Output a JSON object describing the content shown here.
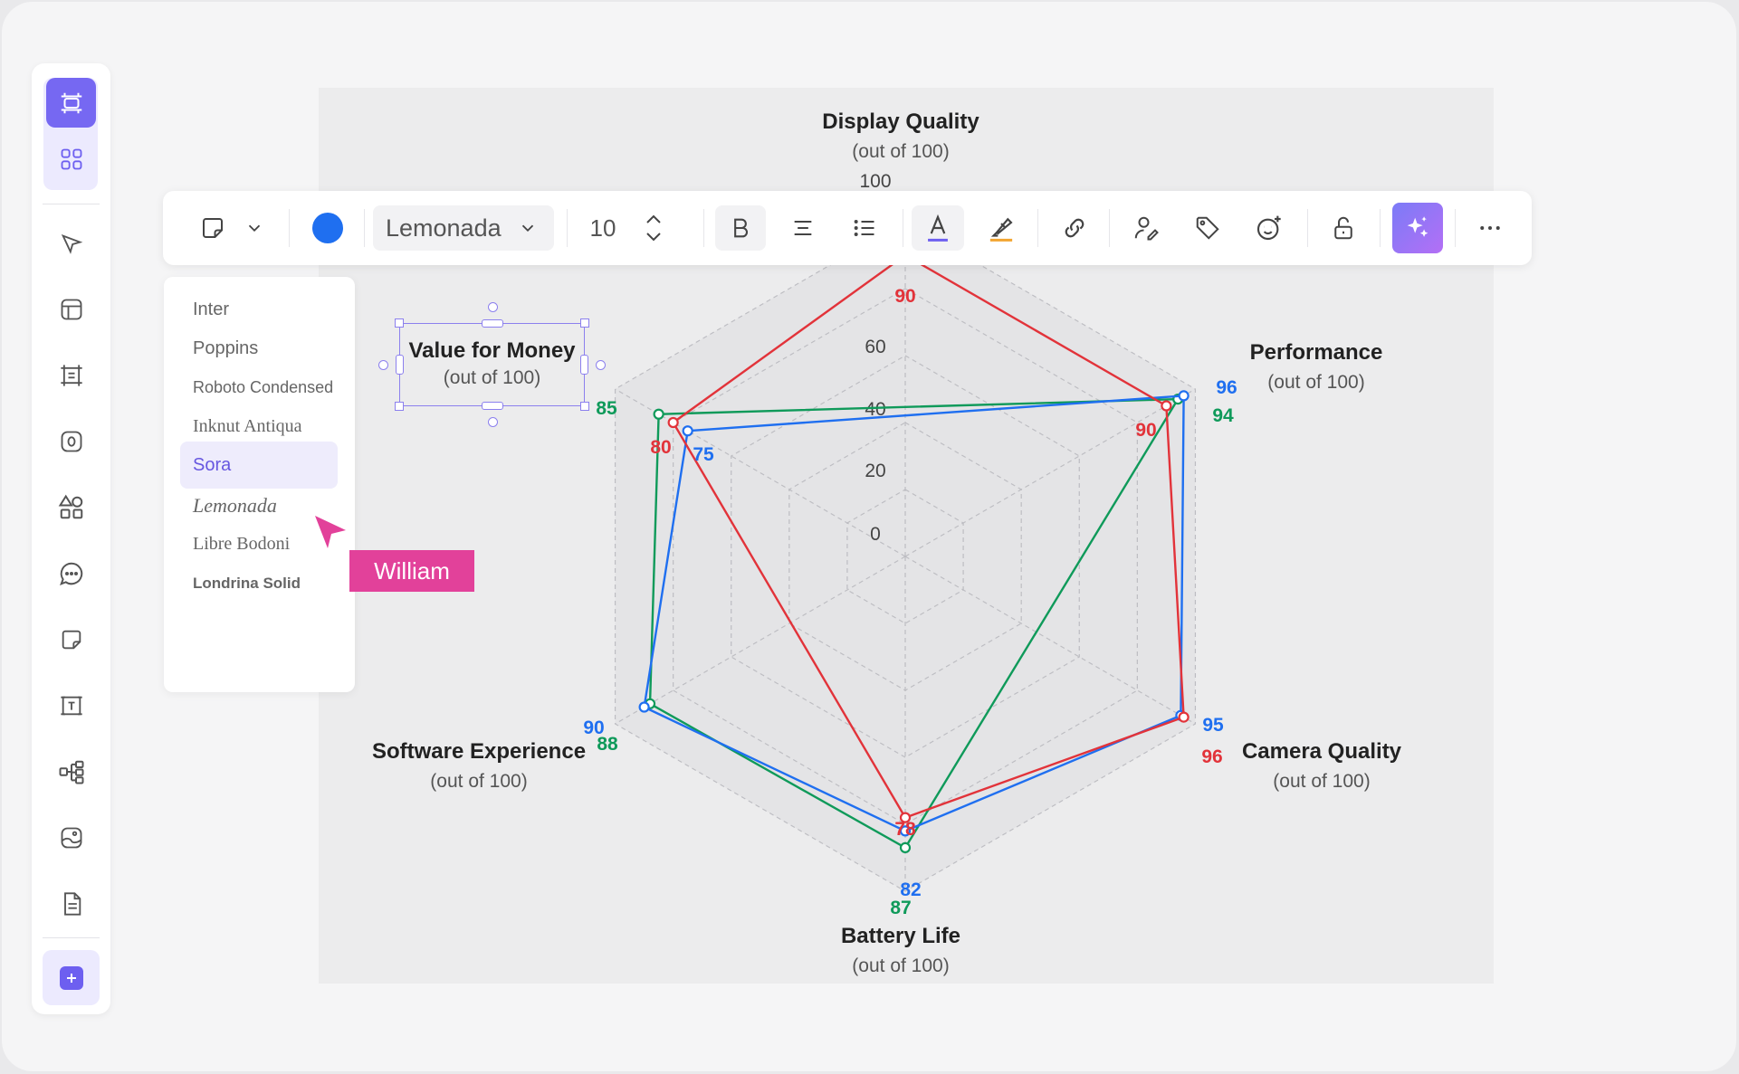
{
  "toolbar": {
    "font": "Lemonada",
    "font_size": "10",
    "color": "#1f6ff0",
    "icons": [
      "sticky-note-icon",
      "chevron-down-icon",
      "color-swatch",
      "bold-icon",
      "align-center-icon",
      "bullet-list-icon",
      "text-color-icon",
      "highlighter-icon",
      "link-icon",
      "assign-user-icon",
      "tag-icon",
      "add-reaction-icon",
      "unlock-icon",
      "ai-sparkle-icon",
      "more-icon"
    ]
  },
  "font_menu": {
    "items": [
      {
        "label": "Inter",
        "family": "sans-serif"
      },
      {
        "label": "Poppins",
        "family": "sans-serif"
      },
      {
        "label": "Roboto Condensed",
        "family": "sans-serif"
      },
      {
        "label": "Inknut Antiqua",
        "family": "serif"
      },
      {
        "label": "Sora",
        "family": "sans-serif",
        "selected": true
      },
      {
        "label": "Lemonada",
        "family": "serif",
        "italic": true
      },
      {
        "label": "Libre Bodoni",
        "family": "serif"
      },
      {
        "label": "Londrina Solid",
        "family": "sans-serif",
        "bold": true
      }
    ]
  },
  "cursor": {
    "user": "William",
    "color": "#e2419a"
  },
  "selection": {
    "title": "Value for Money",
    "subtitle": "(out of 100)"
  },
  "sidebar": {
    "icons": [
      "frame-icon",
      "apps-grid-icon",
      "pointer-icon",
      "layout-icon",
      "frame-select-icon",
      "record-icon",
      "shapes-icon",
      "comment-icon",
      "sticky-icon",
      "text-box-icon",
      "mind-map-icon",
      "image-icon",
      "document-icon",
      "add-icon"
    ]
  },
  "chart_data": {
    "type": "radar",
    "categories": [
      {
        "label": "Display Quality",
        "sub": "(out of 100)"
      },
      {
        "label": "Performance",
        "sub": "(out of 100)"
      },
      {
        "label": "Camera Quality",
        "sub": "(out of 100)"
      },
      {
        "label": "Battery Life",
        "sub": "(out of 100)"
      },
      {
        "label": "Software Experience",
        "sub": "(out of 100)"
      },
      {
        "label": "Value for Money",
        "sub": "(out of 100)"
      }
    ],
    "radial_ticks": [
      "0",
      "20",
      "40",
      "60",
      "100"
    ],
    "range": [
      0,
      100
    ],
    "series": [
      {
        "color": "#1f6ff0",
        "values": [
          null,
          96,
          95,
          82,
          90,
          75
        ],
        "labels": [
          "",
          "96",
          "95",
          "82",
          "90",
          "75"
        ]
      },
      {
        "color": "#0f9a5a",
        "values": [
          null,
          94,
          null,
          87,
          88,
          85
        ],
        "labels": [
          "",
          "94",
          "",
          "87",
          "88",
          "85"
        ]
      },
      {
        "color": "#e2333a",
        "values": [
          90,
          90,
          96,
          78,
          null,
          80
        ],
        "labels": [
          "90",
          "90",
          "96",
          "78",
          "",
          "80"
        ]
      }
    ]
  }
}
